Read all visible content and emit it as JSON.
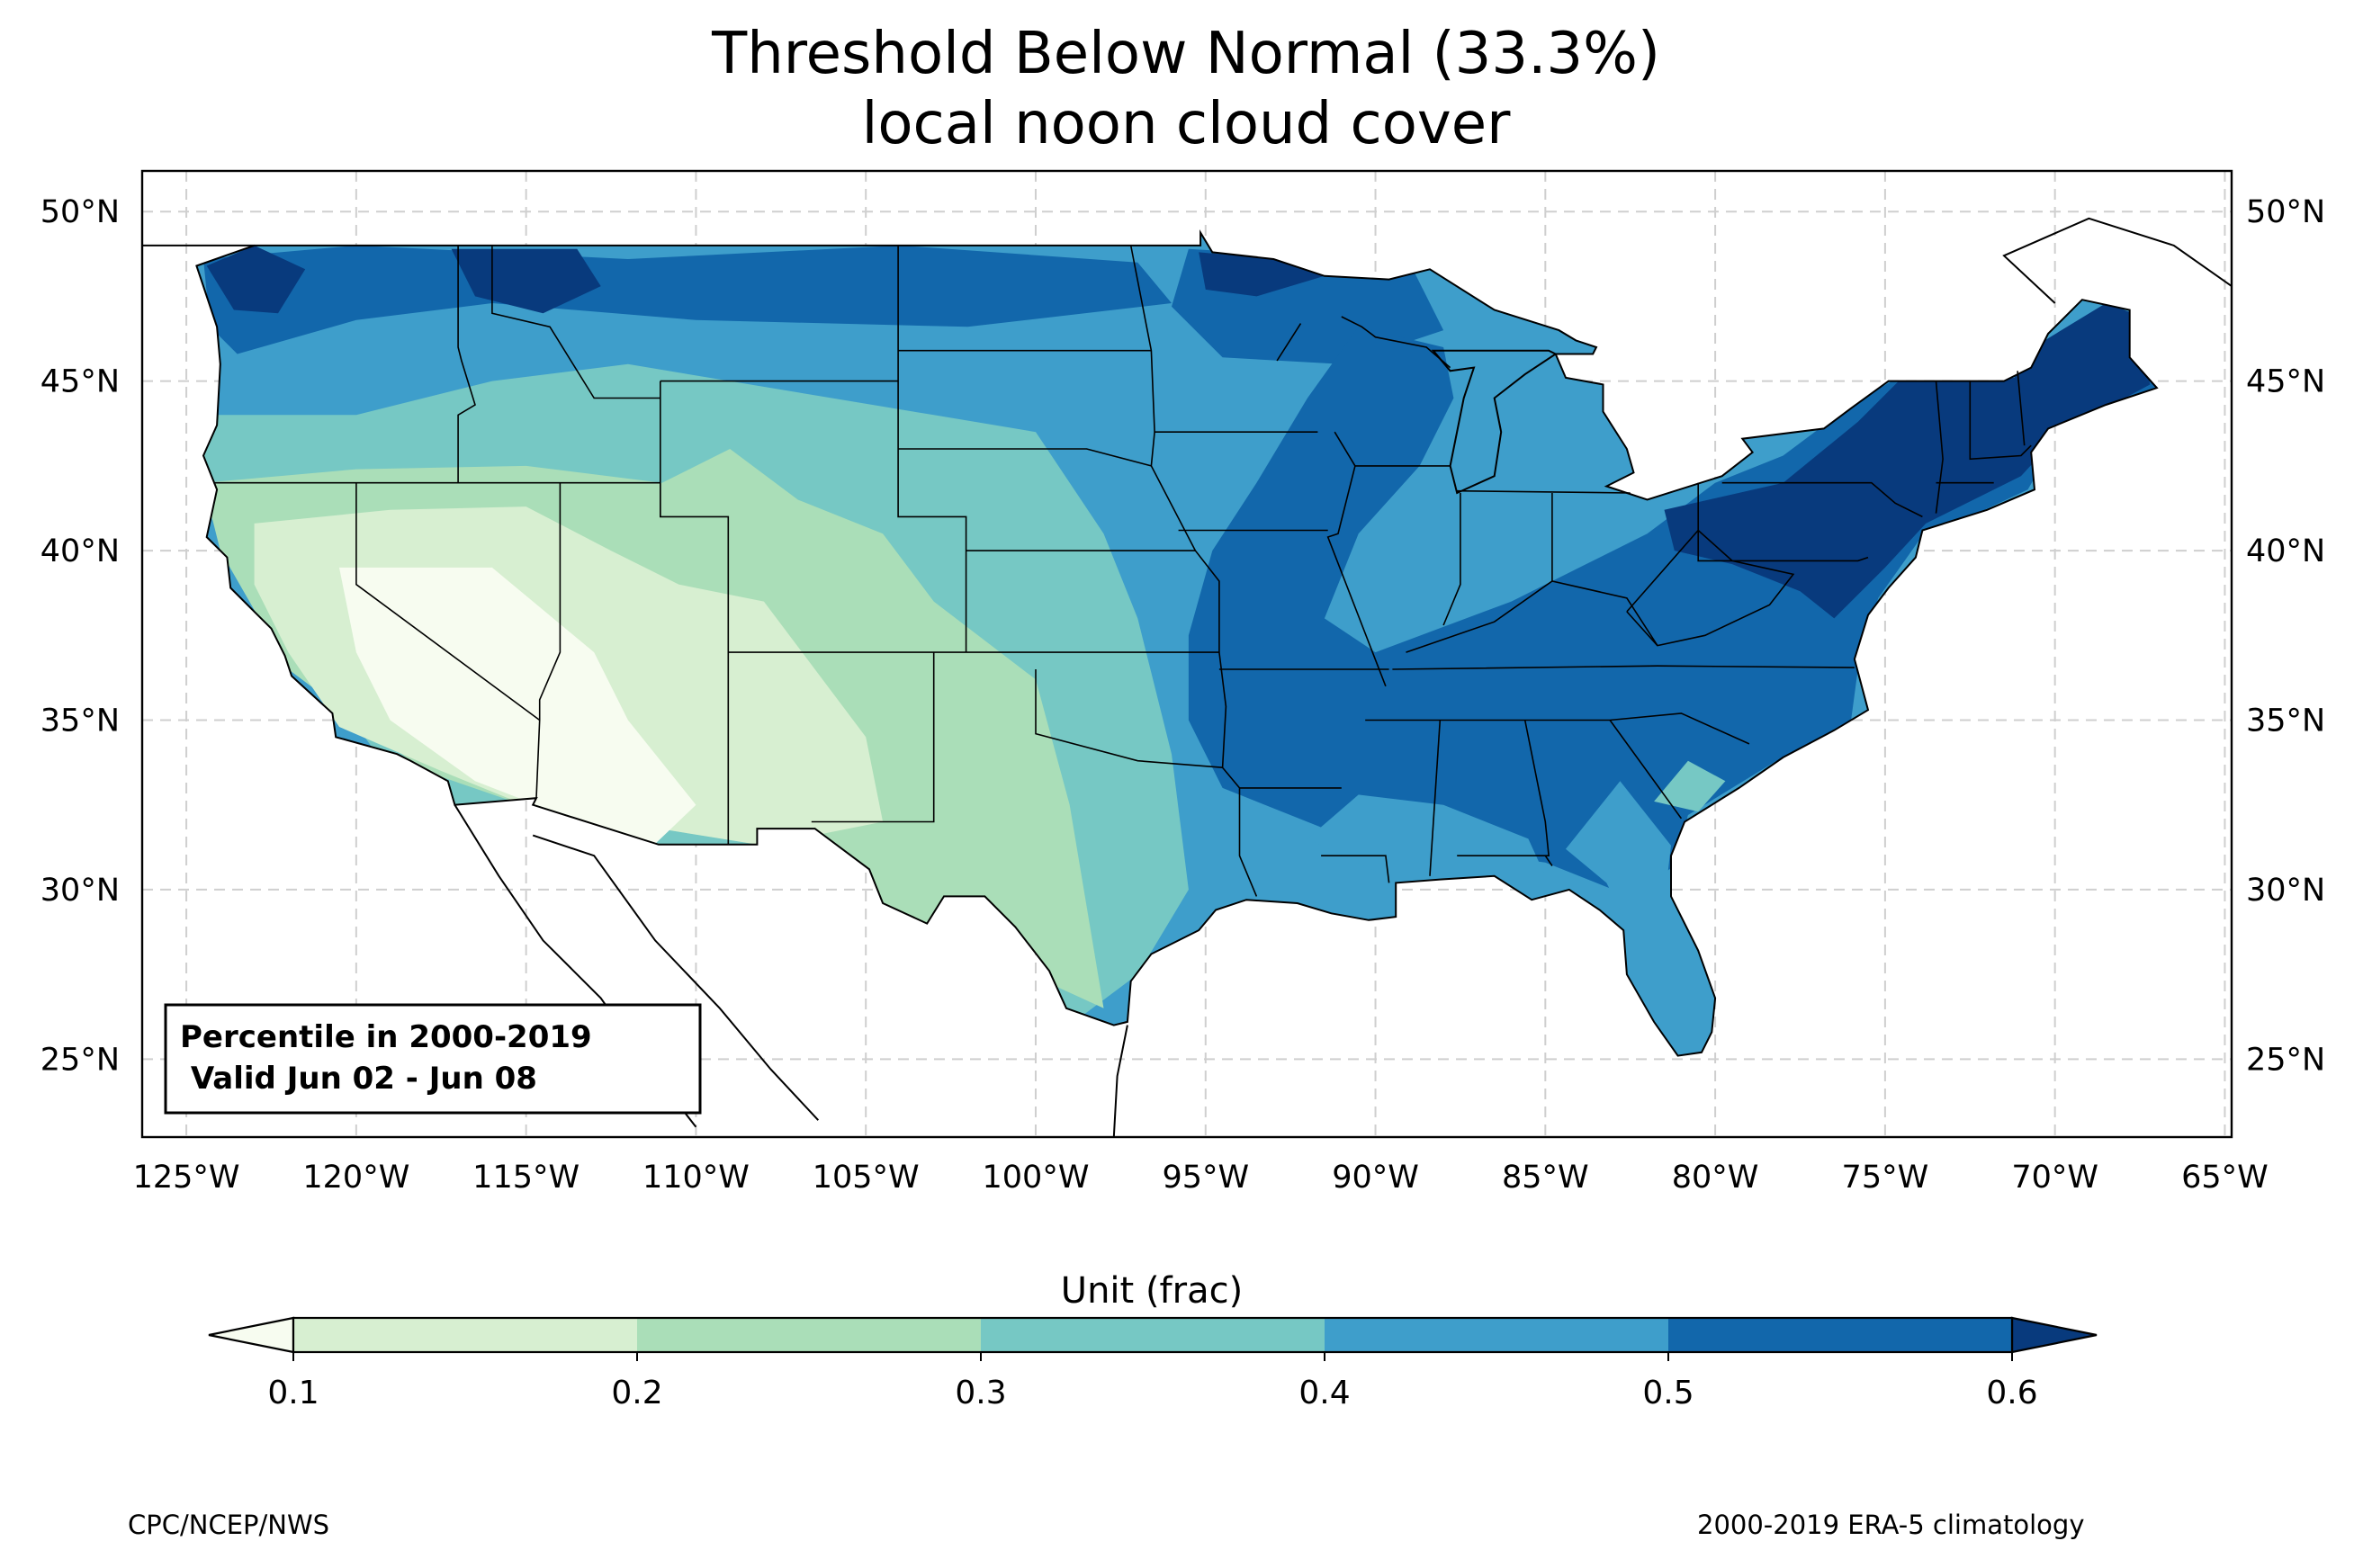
{
  "title": {
    "line1": "Threshold Below Normal (33.3%)",
    "line2": "local noon cloud cover"
  },
  "map": {
    "lon_ticks": [
      "125°W",
      "120°W",
      "115°W",
      "110°W",
      "105°W",
      "100°W",
      "95°W",
      "90°W",
      "85°W",
      "80°W",
      "75°W",
      "70°W",
      "65°W"
    ],
    "lat_ticks": [
      "50°N",
      "45°N",
      "40°N",
      "35°N",
      "30°N",
      "25°N"
    ],
    "lon_range": [
      -126.3,
      -64.8
    ],
    "lat_range": [
      22.7,
      51.2
    ],
    "gridlines": true,
    "info_box": {
      "line1": "Percentile in 2000-2019",
      "line2": " Valid Jun 02 - Jun 08"
    }
  },
  "colorbar": {
    "label": "Unit (frac)",
    "ticks": [
      "0.1",
      "0.2",
      "0.3",
      "0.4",
      "0.5",
      "0.6"
    ],
    "levels": [
      0.1,
      0.2,
      0.3,
      0.4,
      0.5,
      0.6
    ],
    "colors": {
      "under": "#f7fcf0",
      "0.1-0.2": "#d7efd1",
      "0.2-0.3": "#aadeb8",
      "0.3-0.4": "#76c8c4",
      "0.4-0.5": "#3e9ecb",
      "0.5-0.6": "#1267ab",
      "over": "#083a7d"
    }
  },
  "footer": {
    "left": "CPC/NCEP/NWS",
    "right": "2000-2019 ERA-5 climatology"
  }
}
